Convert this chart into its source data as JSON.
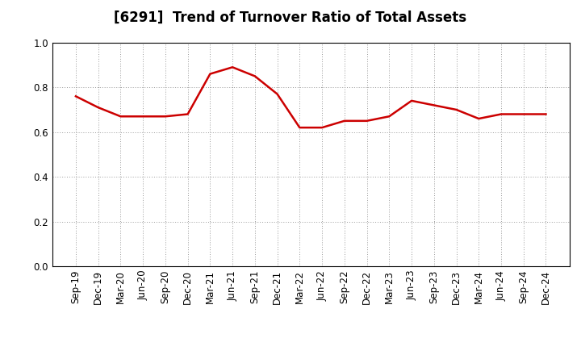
{
  "title": "[6291]  Trend of Turnover Ratio of Total Assets",
  "x_labels": [
    "Sep-19",
    "Dec-19",
    "Mar-20",
    "Jun-20",
    "Sep-20",
    "Dec-20",
    "Mar-21",
    "Jun-21",
    "Sep-21",
    "Dec-21",
    "Mar-22",
    "Jun-22",
    "Sep-22",
    "Dec-22",
    "Mar-23",
    "Jun-23",
    "Sep-23",
    "Dec-23",
    "Mar-24",
    "Jun-24",
    "Sep-24",
    "Dec-24"
  ],
  "y_values": [
    0.76,
    0.71,
    0.67,
    0.67,
    0.67,
    0.68,
    0.86,
    0.89,
    0.85,
    0.77,
    0.62,
    0.62,
    0.65,
    0.65,
    0.67,
    0.74,
    0.72,
    0.7,
    0.66,
    0.68,
    0.68,
    0.68
  ],
  "line_color": "#cc0000",
  "line_width": 1.8,
  "ylim": [
    0.0,
    1.0
  ],
  "yticks": [
    0.0,
    0.2,
    0.4,
    0.6,
    0.8,
    1.0
  ],
  "grid_color": "#999999",
  "bg_color": "#ffffff",
  "title_fontsize": 12,
  "tick_fontsize": 8.5,
  "fig_width": 7.2,
  "fig_height": 4.4,
  "dpi": 100
}
